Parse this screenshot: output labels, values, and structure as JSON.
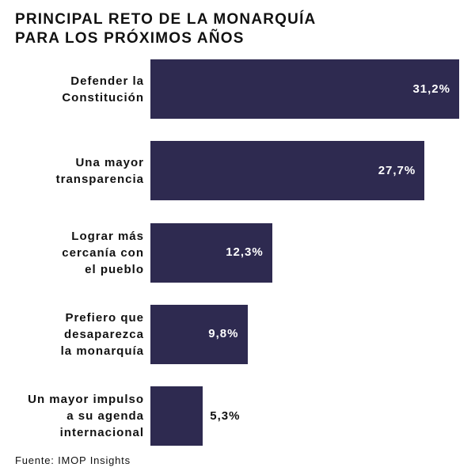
{
  "chart_data": {
    "type": "bar",
    "orientation": "horizontal",
    "title": [
      "PRINCIPAL RETO DE LA MONARQUÍA",
      "PARA LOS PRÓXIMOS AÑOS"
    ],
    "categories": [
      "Defender la\nConstitución",
      "Una mayor\ntransparencia",
      "Lograr más\ncercanía con\nel pueblo",
      "Prefiero que\ndesaparezca\nla monarquía",
      "Un mayor impulso\na su agenda\ninternacional"
    ],
    "values": [
      31.2,
      27.7,
      12.3,
      9.8,
      5.3
    ],
    "value_labels": [
      "31,2%",
      "27,7%",
      "12,3%",
      "9,8%",
      "5,3%"
    ],
    "color": "#2e2a50",
    "xlim": [
      0,
      32
    ],
    "source": "Fuente: IMOP Insights"
  }
}
